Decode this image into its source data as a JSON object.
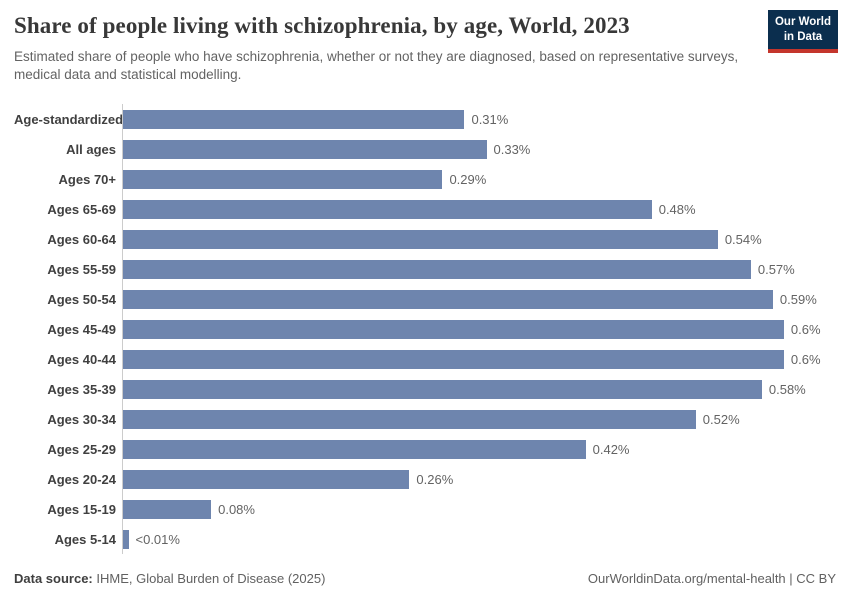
{
  "header": {
    "title": "Share of people living with schizophrenia, by age, World, 2023",
    "subtitle": "Estimated share of people who have schizophrenia, whether or not they are diagnosed, based on representative surveys, medical data and statistical modelling.",
    "logo": {
      "line1": "Our World",
      "line2": "in Data"
    }
  },
  "chart_data": {
    "type": "bar",
    "orientation": "horizontal",
    "title": "Share of people living with schizophrenia, by age, World, 2023",
    "categories": [
      "Age-standardized",
      "All ages",
      "Ages 70+",
      "Ages 65-69",
      "Ages 60-64",
      "Ages 55-59",
      "Ages 50-54",
      "Ages 45-49",
      "Ages 40-44",
      "Ages 35-39",
      "Ages 30-34",
      "Ages 25-29",
      "Ages 20-24",
      "Ages 15-19",
      "Ages 5-14"
    ],
    "values": [
      0.31,
      0.33,
      0.29,
      0.48,
      0.54,
      0.57,
      0.59,
      0.6,
      0.6,
      0.58,
      0.52,
      0.42,
      0.26,
      0.08,
      0.005
    ],
    "value_labels": [
      "0.31%",
      "0.33%",
      "0.29%",
      "0.48%",
      "0.54%",
      "0.57%",
      "0.59%",
      "0.6%",
      "0.6%",
      "0.58%",
      "0.52%",
      "0.42%",
      "0.26%",
      "0.08%",
      "<0.01%"
    ],
    "xlabel": "",
    "ylabel": "",
    "xlim": [
      0,
      0.66
    ],
    "grid": false,
    "legend": "none",
    "bar_color": "#6e85ae"
  },
  "footer": {
    "source_label": "Data source:",
    "source_text": " IHME, Global Burden of Disease (2025)",
    "citation": "OurWorldinData.org/mental-health | CC BY"
  },
  "colors": {
    "bar_color": "#6e85ae",
    "title_color": "#383838",
    "subtitle_color": "#636363",
    "label_color": "#404040",
    "value_color": "#636363",
    "axis_color": "#cccccc",
    "footer_color": "#616161",
    "footer_strong": "#3f3f3f",
    "logo_bg": "#0b2e4e",
    "logo_stripe": "#c4352c",
    "logo_text": "#ffffff"
  }
}
